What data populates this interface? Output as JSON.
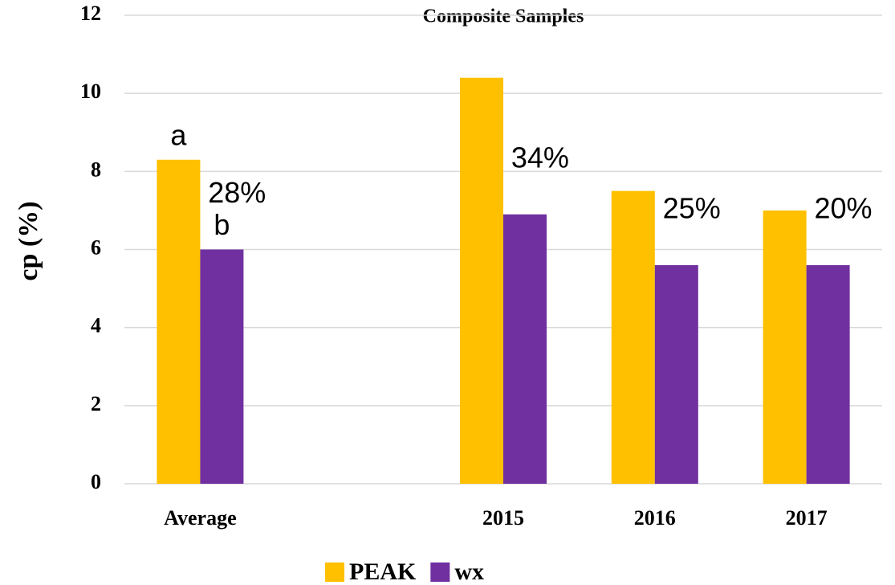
{
  "chart_data": {
    "type": "bar",
    "title": "Composite Samples",
    "y_label": "cp (%)",
    "categories": [
      "Average",
      null,
      "2015",
      "2016",
      "2017"
    ],
    "series": [
      {
        "name": "PEAK",
        "color": "#ffc000",
        "values": [
          8.3,
          null,
          10.4,
          7.5,
          7.0
        ]
      },
      {
        "name": "wx",
        "color": "#7030a0",
        "values": [
          6.0,
          null,
          6.9,
          5.6,
          5.6
        ]
      }
    ],
    "ylim": [
      0,
      12
    ],
    "yticks": [
      0,
      2,
      4,
      6,
      8,
      10,
      12
    ],
    "grid": true,
    "legend": "bottom",
    "annotations": [
      {
        "text": "a",
        "category": 0,
        "series": 0
      },
      {
        "text": "b",
        "category": 0,
        "series": 1
      },
      {
        "text": "28%",
        "category": 0
      },
      {
        "text": "34%",
        "category": 2
      },
      {
        "text": "25%",
        "category": 3
      },
      {
        "text": "20%",
        "category": 4
      }
    ]
  }
}
